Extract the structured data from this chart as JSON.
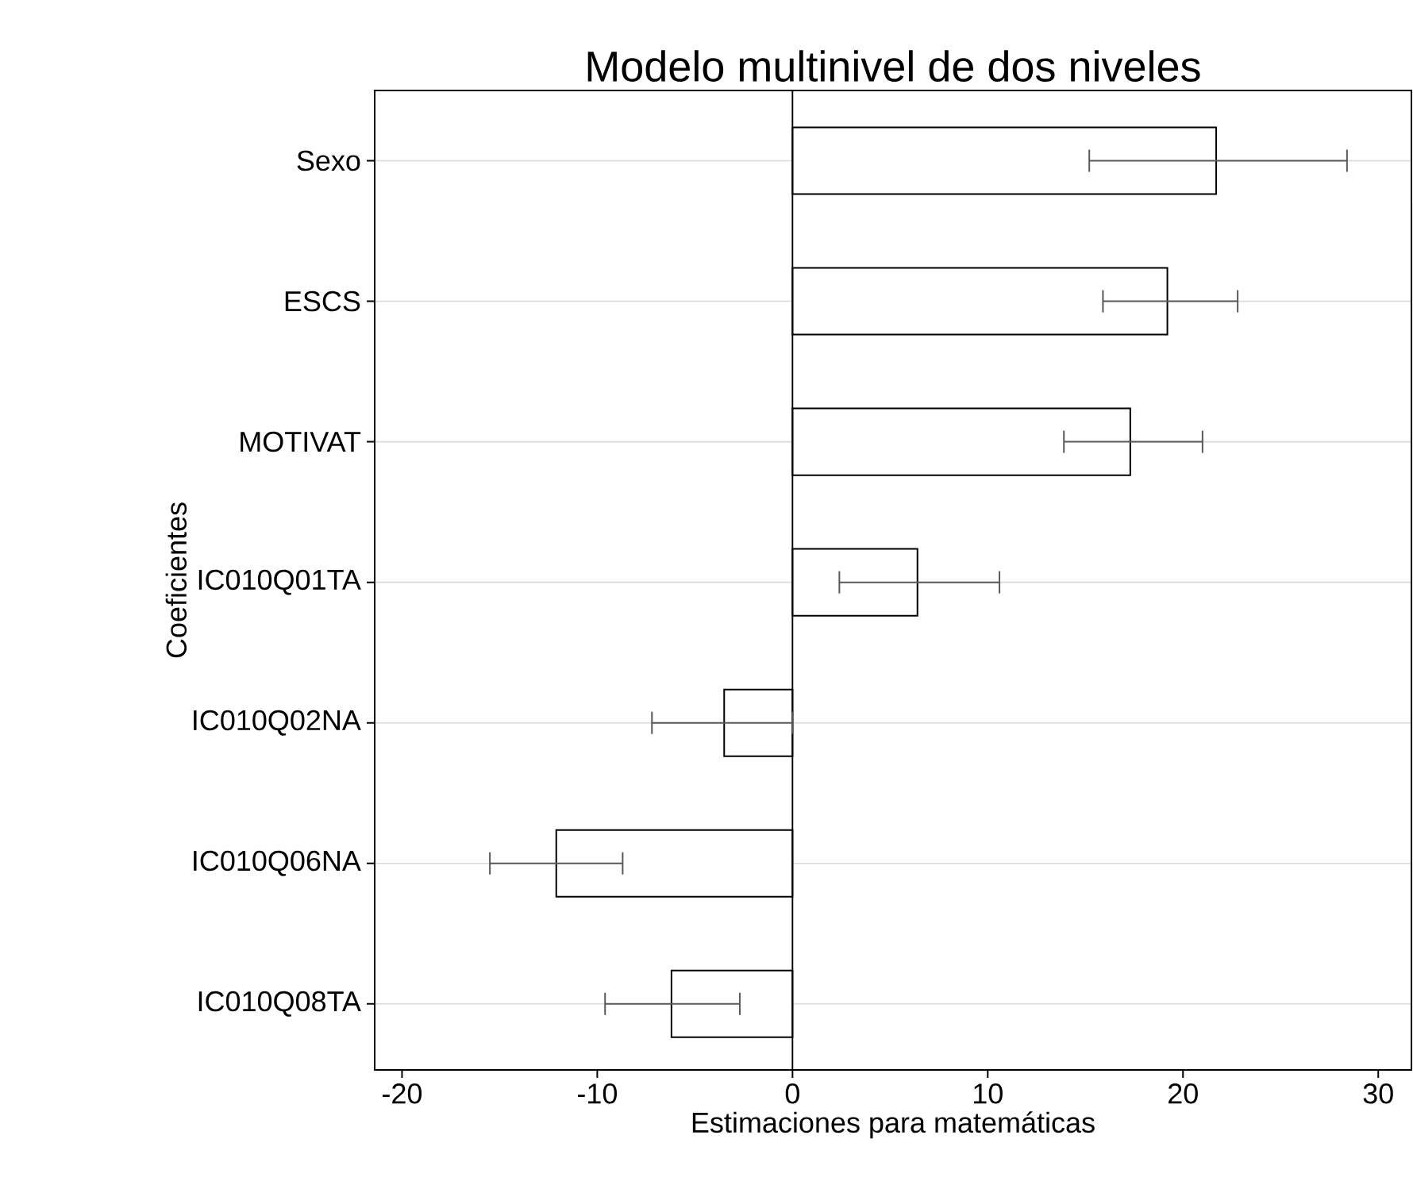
{
  "chart_data": {
    "type": "bar",
    "orientation": "horizontal",
    "title": "Modelo multinivel de dos niveles",
    "xlabel": "Estimaciones para matemáticas",
    "ylabel": "Coeficientes",
    "categories": [
      "Sexo",
      "ESCS",
      "MOTIVAT",
      "IC010Q01TA",
      "IC010Q02NA",
      "IC010Q06NA",
      "IC010Q08TA"
    ],
    "values": [
      21.7,
      19.2,
      17.3,
      6.4,
      -3.5,
      -12.1,
      -6.2
    ],
    "errors": [
      [
        15.2,
        28.4
      ],
      [
        15.9,
        22.8
      ],
      [
        13.9,
        21.0
      ],
      [
        2.4,
        10.6
      ],
      [
        -7.2,
        0
      ],
      [
        -15.5,
        -8.7
      ],
      [
        -9.6,
        -2.7
      ]
    ],
    "color": "#ffffff",
    "xlim": [
      -21.4,
      31.7
    ],
    "xticks": [
      -20,
      -10,
      0,
      10,
      20,
      30
    ],
    "ref_lines": [
      {
        "axis": "x",
        "value": 0,
        "color": "#000000"
      }
    ],
    "grid": "y"
  }
}
